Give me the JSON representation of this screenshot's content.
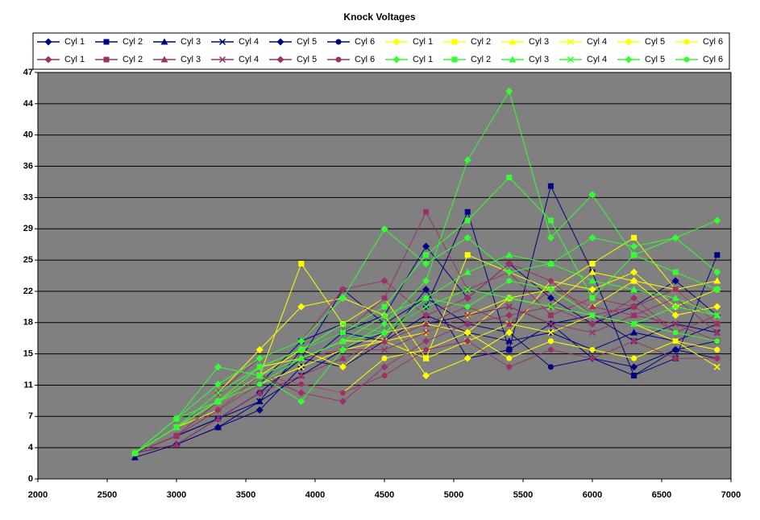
{
  "chart_data": {
    "type": "line",
    "title": "Knock Voltages",
    "x": [
      2700,
      3000,
      3300,
      3600,
      3900,
      4200,
      4500,
      4800,
      5100,
      5400,
      5700,
      6000,
      6300,
      6600,
      6900
    ],
    "xlim": [
      2000,
      7000
    ],
    "xticks": [
      2000,
      2500,
      3000,
      3500,
      4000,
      4500,
      5000,
      5500,
      6000,
      6500,
      7000
    ],
    "ylim": [
      0,
      47.19
    ],
    "yticks": [
      0,
      {
        "value": 3.63,
        "label": "4"
      },
      {
        "value": 7.26,
        "label": "7"
      },
      {
        "value": 10.89,
        "label": "11"
      },
      {
        "value": 14.52,
        "label": "15"
      },
      {
        "value": 18.15,
        "label": "18"
      },
      {
        "value": 21.78,
        "label": "22"
      },
      {
        "value": 25.41,
        "label": "25"
      },
      {
        "value": 29.04,
        "label": "29"
      },
      {
        "value": 32.67,
        "label": "33"
      },
      {
        "value": 36.3,
        "label": "36"
      },
      {
        "value": 39.93,
        "label": "40"
      },
      {
        "value": 43.56,
        "label": "44"
      },
      {
        "value": 47.19,
        "label": "47"
      }
    ],
    "grid": true,
    "background": "#808080",
    "legend": "top",
    "series": [
      {
        "name": "Cyl 1",
        "color": "#000080",
        "marker": "diamond",
        "values": [
          3,
          4,
          7,
          10,
          14,
          13,
          16,
          22,
          14,
          15,
          18,
          14,
          13,
          15,
          16
        ]
      },
      {
        "name": "Cyl 2",
        "color": "#000080",
        "marker": "square",
        "values": [
          3,
          5,
          8,
          11,
          16,
          18,
          17,
          20,
          31,
          15,
          34,
          24,
          12,
          14,
          26
        ]
      },
      {
        "name": "Cyl 3",
        "color": "#000080",
        "marker": "triangle",
        "values": [
          2.5,
          4,
          6,
          9,
          15,
          17,
          16,
          19,
          17,
          16,
          17,
          15,
          17,
          16,
          18
        ]
      },
      {
        "name": "Cyl 4",
        "color": "#000080",
        "marker": "x",
        "values": [
          3,
          5,
          7,
          9,
          12,
          15,
          17,
          18,
          19,
          20,
          18,
          19,
          16,
          18,
          17
        ]
      },
      {
        "name": "Cyl 5",
        "color": "#000080",
        "marker": "diamond",
        "values": [
          3,
          4,
          6,
          8,
          13,
          17,
          19,
          27,
          21,
          25,
          21,
          18,
          20,
          23,
          19
        ]
      },
      {
        "name": "Cyl 6",
        "color": "#000080",
        "marker": "circle",
        "values": [
          3,
          5,
          7,
          10,
          14,
          22,
          18,
          21,
          18,
          17,
          13,
          14,
          12,
          15,
          14
        ]
      },
      {
        "name": "Cyl 1",
        "color": "#ffff00",
        "marker": "diamond",
        "values": [
          3,
          6,
          9,
          12,
          15,
          13,
          17,
          18,
          17,
          21,
          22,
          20,
          23,
          19,
          20
        ]
      },
      {
        "name": "Cyl 2",
        "color": "#ffff00",
        "marker": "square",
        "values": [
          3,
          6,
          8,
          12,
          25,
          18,
          21,
          14,
          26,
          24,
          22,
          25,
          28,
          22,
          18
        ]
      },
      {
        "name": "Cyl 3",
        "color": "#ffff00",
        "marker": "triangle",
        "values": [
          3,
          6,
          9,
          13,
          14,
          16,
          16,
          17,
          19,
          21,
          20,
          24,
          23,
          22,
          23
        ]
      },
      {
        "name": "Cyl 4",
        "color": "#ffff00",
        "marker": "x",
        "values": [
          3,
          5,
          8,
          11,
          13,
          15,
          16,
          14,
          16,
          18,
          17,
          19,
          18,
          16,
          13
        ]
      },
      {
        "name": "Cyl 5",
        "color": "#ffff00",
        "marker": "diamond",
        "values": [
          3,
          6,
          10,
          15,
          20,
          21,
          19,
          12,
          14,
          17,
          23,
          22,
          24,
          20,
          22
        ]
      },
      {
        "name": "Cyl 6",
        "color": "#ffff00",
        "marker": "circle",
        "values": [
          3,
          6,
          9,
          12,
          11,
          10,
          14,
          15,
          17,
          14,
          16,
          15,
          14,
          16,
          15
        ]
      },
      {
        "name": "Cyl 1",
        "color": "#993366",
        "marker": "diamond",
        "values": [
          3,
          5,
          8,
          12,
          10,
          9,
          13,
          16,
          18,
          19,
          20,
          18,
          21,
          17,
          16
        ]
      },
      {
        "name": "Cyl 2",
        "color": "#993366",
        "marker": "square",
        "values": [
          3,
          5,
          9,
          13,
          15,
          17,
          21,
          31,
          22,
          24,
          19,
          21,
          20,
          22,
          18
        ]
      },
      {
        "name": "Cyl 3",
        "color": "#993366",
        "marker": "triangle",
        "values": [
          3,
          4,
          7,
          10,
          12,
          14,
          16,
          18,
          20,
          18,
          22,
          20,
          19,
          21,
          17
        ]
      },
      {
        "name": "Cyl 4",
        "color": "#993366",
        "marker": "x",
        "values": [
          3,
          5,
          8,
          11,
          14,
          15,
          15,
          17,
          19,
          20,
          18,
          17,
          19,
          18,
          16
        ]
      },
      {
        "name": "Cyl 5",
        "color": "#993366",
        "marker": "diamond",
        "values": [
          3,
          6,
          10,
          14,
          16,
          22,
          23,
          19,
          21,
          25,
          23,
          19,
          20,
          17,
          19
        ]
      },
      {
        "name": "Cyl 6",
        "color": "#993366",
        "marker": "circle",
        "values": [
          3,
          5,
          9,
          12,
          11,
          10,
          12,
          15,
          16,
          13,
          15,
          14,
          16,
          14,
          14
        ]
      },
      {
        "name": "Cyl 1",
        "color": "#33ff33",
        "marker": "diamond",
        "values": [
          3,
          7,
          13,
          12,
          9,
          15,
          18,
          23,
          37,
          45,
          28,
          33,
          26,
          28,
          24
        ]
      },
      {
        "name": "Cyl 2",
        "color": "#33ff33",
        "marker": "square",
        "values": [
          3,
          7,
          9,
          13,
          15,
          17,
          20,
          26,
          30,
          35,
          30,
          21,
          26,
          24,
          22
        ]
      },
      {
        "name": "Cyl 3",
        "color": "#33ff33",
        "marker": "triangle",
        "values": [
          3,
          6,
          9,
          12,
          14,
          16,
          19,
          21,
          24,
          26,
          25,
          23,
          22,
          21,
          19
        ]
      },
      {
        "name": "Cyl 4",
        "color": "#33ff33",
        "marker": "x",
        "values": [
          3,
          6,
          10,
          13,
          15,
          18,
          17,
          20,
          22,
          21,
          20,
          19,
          18,
          20,
          19
        ]
      },
      {
        "name": "Cyl 5",
        "color": "#33ff33",
        "marker": "diamond",
        "values": [
          3,
          7,
          11,
          14,
          16,
          21,
          29,
          25,
          28,
          24,
          25,
          28,
          27,
          28,
          30
        ]
      },
      {
        "name": "Cyl 6",
        "color": "#33ff33",
        "marker": "circle",
        "values": [
          3,
          6,
          9,
          11,
          14,
          16,
          17,
          21,
          20,
          23,
          22,
          19,
          18,
          17,
          16
        ]
      }
    ]
  }
}
